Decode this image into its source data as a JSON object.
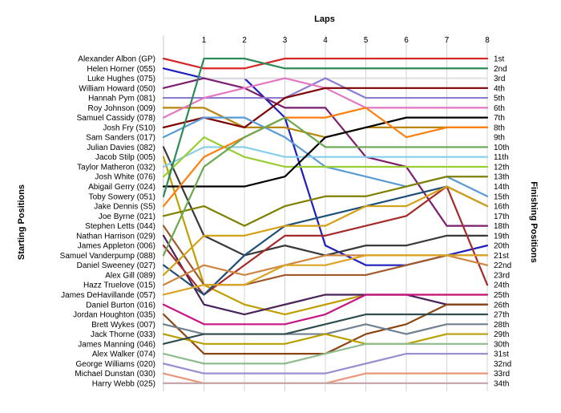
{
  "chart_data": {
    "type": "line",
    "subtype": "lap-position-chart",
    "title": "",
    "xlabel": "Laps",
    "ylabel_left": "Starting Positions",
    "ylabel_right": "Finishing Positions",
    "x_ticks": [
      1,
      2,
      3,
      4,
      5,
      6,
      7,
      8
    ],
    "xlim": [
      0,
      8
    ],
    "y_positions": 34,
    "y_inverted": true,
    "grid": "vertical",
    "starting_labels": [
      "Alexander Albon (GP)",
      "Helen Horner (055)",
      "Luke Hughes (075)",
      "William Howard (050)",
      "Hannah Pym (081)",
      "Roy Johnson (009)",
      "Samuel Cassidy (078)",
      "Josh Fry (S10)",
      "Sam Sanders (017)",
      "Julian Davies (082)",
      "Jacob Stilp (005)",
      "Taylor Matheron (032)",
      "Josh White (076)",
      "Abigail Gerry (024)",
      "Toby Sowery (051)",
      "Jake Dennis (S5)",
      "Joe Byrne (021)",
      "Stephen Letts (044)",
      "Nathan Harrison (029)",
      "James Appleton (006)",
      "Samuel Vanderpump (088)",
      "Daniel Sweeney (027)",
      "Alex Gill (089)",
      "Hazz Truelove (015)",
      "James DeHavillande (057)",
      "Daniel Burton (016)",
      "Jordan Houghton (035)",
      "Brett Wykes (007)",
      "Jack Thorne (033)",
      "James Manning (046)",
      "Alex Walker (074)",
      "George Williams (020)",
      "Michael Dunstan (030)",
      "Harry Webb (025)"
    ],
    "finishing_labels": [
      "1st",
      "2nd",
      "3rd",
      "4th",
      "5th",
      "6th",
      "7th",
      "8th",
      "9th",
      "10th",
      "11th",
      "12th",
      "13th",
      "14th",
      "15th",
      "16th",
      "17th",
      "18th",
      "19th",
      "20th",
      "21st",
      "22nd",
      "23rd",
      "24th",
      "25th",
      "26th",
      "27th",
      "28th",
      "29th",
      "30th",
      "31st",
      "32nd",
      "33rd",
      "34th"
    ],
    "series": [
      {
        "color": "#d62728",
        "positions": [
          1,
          2,
          2,
          1,
          1,
          1,
          1,
          1,
          1
        ]
      },
      {
        "color": "#1f1fbf",
        "positions": [
          2,
          3,
          3,
          7,
          20,
          22,
          22,
          21,
          20
        ]
      },
      {
        "color": "#e0e0e0",
        "positions": [
          3,
          3,
          3,
          3,
          3,
          3,
          3,
          3,
          3
        ]
      },
      {
        "color": "#7a1e6e",
        "positions": [
          4,
          3,
          4,
          6,
          6,
          11,
          12,
          18,
          18
        ]
      },
      {
        "color": "#8c7bcf",
        "positions": [
          5,
          5,
          5,
          5,
          3,
          5,
          5,
          5,
          5
        ]
      },
      {
        "color": "#b8860b",
        "positions": [
          6,
          6,
          8,
          8,
          9,
          8,
          8,
          8,
          8
        ]
      },
      {
        "color": "#e377c2",
        "positions": [
          7,
          5,
          4,
          3,
          4,
          6,
          6,
          6,
          6
        ]
      },
      {
        "color": "#7f0000",
        "positions": [
          8,
          7,
          8,
          5,
          4,
          4,
          4,
          4,
          4
        ]
      },
      {
        "color": "#5b9bd5",
        "positions": [
          9,
          7,
          7,
          9,
          12,
          13,
          14,
          13,
          15
        ]
      },
      {
        "color": "#3a3a3a",
        "positions": [
          10,
          19,
          21,
          20,
          21,
          20,
          20,
          19,
          19
        ]
      },
      {
        "color": "#c0a000",
        "positions": [
          11,
          24,
          26,
          27,
          26,
          25,
          25,
          25,
          25
        ]
      },
      {
        "color": "#87ceeb",
        "positions": [
          12,
          10,
          10,
          11,
          11,
          11,
          11,
          11,
          11
        ]
      },
      {
        "color": "#9acd32",
        "positions": [
          13,
          9,
          11,
          12,
          12,
          12,
          12,
          12,
          12
        ]
      },
      {
        "color": "#000000",
        "positions": [
          14,
          14,
          14,
          13,
          9,
          8,
          7,
          7,
          7
        ]
      },
      {
        "color": "#2e8b57",
        "positions": [
          15,
          1,
          1,
          2,
          2,
          2,
          2,
          2,
          2
        ]
      },
      {
        "color": "#ff7f0e",
        "positions": [
          16,
          11,
          9,
          7,
          7,
          6,
          9,
          8,
          8
        ]
      },
      {
        "color": "#808000",
        "positions": [
          17,
          16,
          18,
          16,
          15,
          15,
          14,
          13,
          13
        ]
      },
      {
        "color": "#a05a2c",
        "positions": [
          18,
          24,
          24,
          23,
          23,
          23,
          22,
          21,
          21
        ]
      },
      {
        "color": "#4a235a",
        "positions": [
          19,
          26,
          27,
          26,
          25,
          25,
          25,
          26,
          26
        ]
      },
      {
        "color": "#a52a2a",
        "positions": [
          20,
          25,
          22,
          19,
          19,
          18,
          17,
          14,
          24
        ]
      },
      {
        "color": "#6aa84f",
        "positions": [
          21,
          12,
          9,
          7,
          10,
          10,
          10,
          10,
          10
        ]
      },
      {
        "color": "#1f4e79",
        "positions": [
          22,
          25,
          21,
          18,
          17,
          16,
          15,
          14,
          16
        ]
      },
      {
        "color": "#d4a017",
        "positions": [
          23,
          19,
          19,
          18,
          18,
          16,
          16,
          14,
          16
        ]
      },
      {
        "color": "#cd853f",
        "positions": [
          24,
          22,
          23,
          22,
          21,
          21,
          21,
          21,
          22
        ]
      },
      {
        "color": "#daa520",
        "positions": [
          25,
          24,
          24,
          22,
          22,
          21,
          21,
          21,
          21
        ]
      },
      {
        "color": "#c71585",
        "positions": [
          26,
          28,
          28,
          28,
          27,
          25,
          25,
          25,
          25
        ]
      },
      {
        "color": "#8b4513",
        "positions": [
          27,
          31,
          31,
          31,
          31,
          29,
          28,
          26,
          26
        ]
      },
      {
        "color": "#708090",
        "positions": [
          28,
          29,
          29,
          29,
          29,
          28,
          29,
          28,
          28
        ]
      },
      {
        "color": "#b8a000",
        "positions": [
          29,
          30,
          30,
          30,
          29,
          30,
          30,
          29,
          29
        ]
      },
      {
        "color": "#2f4f4f",
        "positions": [
          30,
          29,
          29,
          29,
          28,
          27,
          27,
          27,
          27
        ]
      },
      {
        "color": "#8fbc8f",
        "positions": [
          31,
          32,
          32,
          32,
          31,
          30,
          30,
          30,
          30
        ]
      },
      {
        "color": "#9b8fd0",
        "positions": [
          32,
          33,
          33,
          33,
          33,
          32,
          31,
          31,
          31
        ]
      },
      {
        "color": "#e9967a",
        "positions": [
          33,
          34,
          34,
          34,
          34,
          33,
          33,
          33,
          33
        ]
      },
      {
        "color": "#c8a8a8",
        "positions": [
          34,
          34,
          34,
          34,
          34,
          34,
          34,
          34,
          34
        ]
      }
    ]
  }
}
